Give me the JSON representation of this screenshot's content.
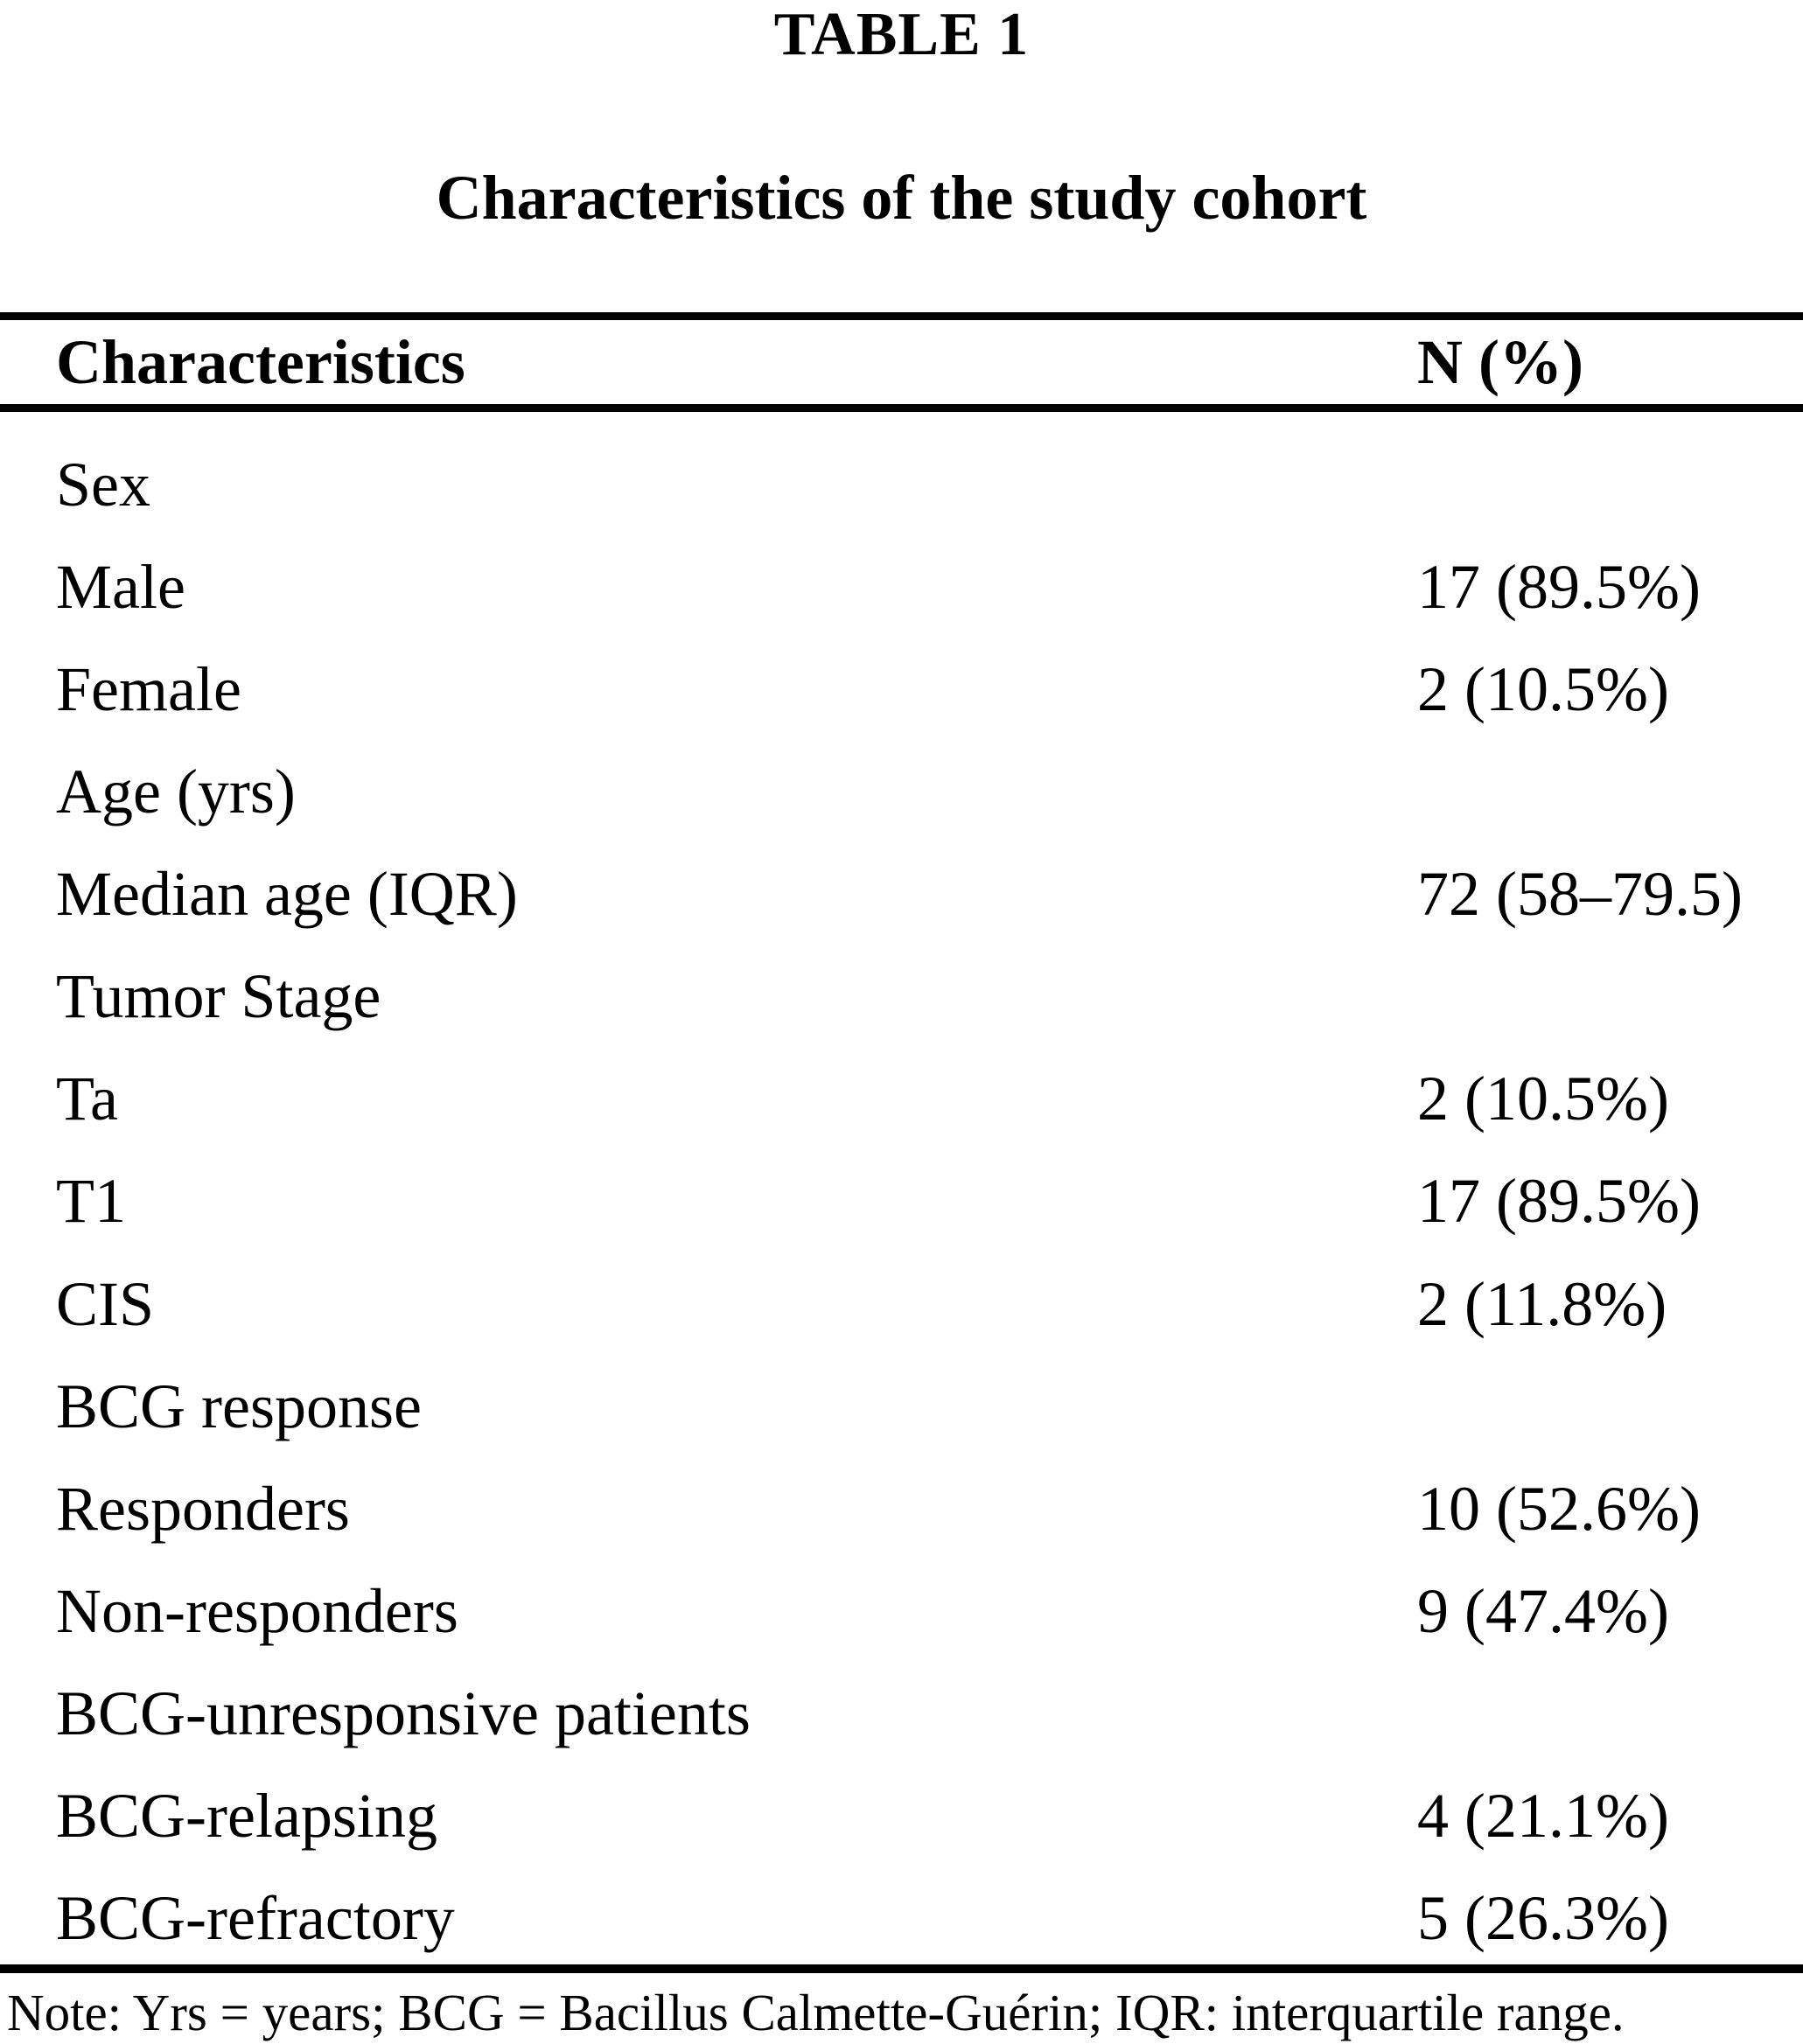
{
  "table": {
    "label": "TABLE 1",
    "title": "Characteristics of the study cohort",
    "columns": [
      "Characteristics",
      "N (%)"
    ],
    "rows": [
      {
        "label": "Sex",
        "value": ""
      },
      {
        "label": "Male",
        "value": "17 (89.5%)"
      },
      {
        "label": "Female",
        "value": "2 (10.5%)"
      },
      {
        "label": "Age (yrs)",
        "value": ""
      },
      {
        "label": "Median age (IQR)",
        "value": "72 (58–79.5)"
      },
      {
        "label": "Tumor Stage",
        "value": ""
      },
      {
        "label": "Ta",
        "value": "2 (10.5%)"
      },
      {
        "label": "T1",
        "value": "17 (89.5%)"
      },
      {
        "label": "CIS",
        "value": "2 (11.8%)"
      },
      {
        "label": "BCG response",
        "value": ""
      },
      {
        "label": "Responders",
        "value": "10 (52.6%)"
      },
      {
        "label": "Non-responders",
        "value": "9 (47.4%)"
      },
      {
        "label": "BCG-unresponsive patients",
        "value": ""
      },
      {
        "label": "BCG-relapsing",
        "value": "4 (21.1%)"
      },
      {
        "label": "BCG-refractory",
        "value": "5 (26.3%)"
      }
    ],
    "note": "Note: Yrs = years; BCG = Bacillus Calmette-Guérin; IQR: interquartile range.",
    "colors": {
      "text": "#000000",
      "rule": "#000000",
      "background": "#ffffff"
    }
  }
}
